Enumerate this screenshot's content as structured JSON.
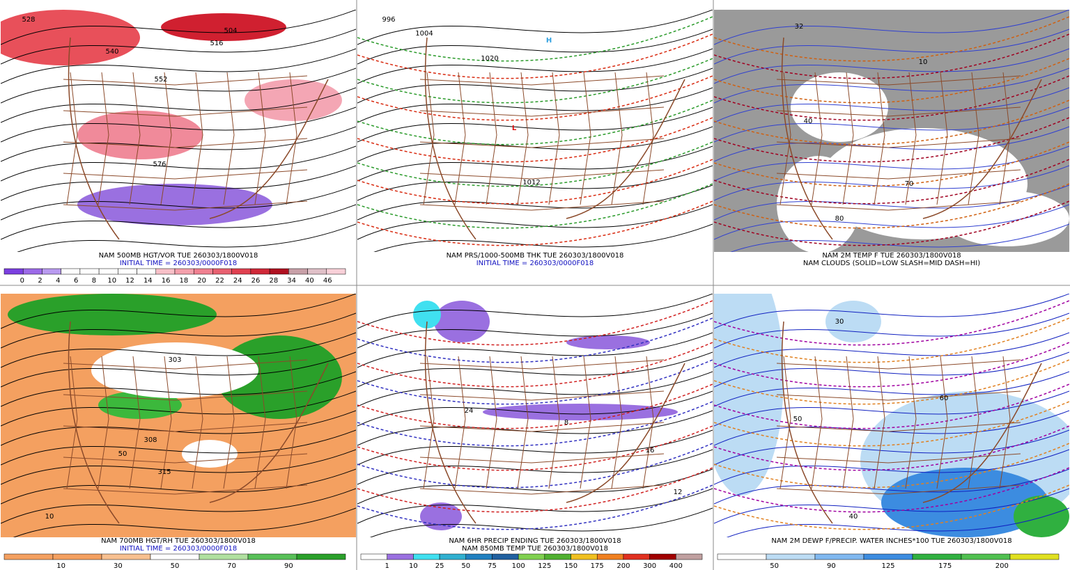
{
  "panels": [
    {
      "caption": [
        "NAM 500MB HGT/VOR TUE 260303/1800V018",
        "INITIAL TIME = 260303/0000F018"
      ],
      "colorbar": [
        "0",
        "2",
        "4",
        "6",
        "8",
        "10",
        "12",
        "14",
        "16",
        "18",
        "20",
        "22",
        "24",
        "26",
        "28",
        "34",
        "40",
        "46"
      ],
      "map_labels": [
        "528",
        "540",
        "552",
        "576",
        "504",
        "516"
      ]
    },
    {
      "caption": [
        "NAM PRS/1000-500MB THK TUE 260303/1800V018",
        "INITIAL TIME = 260303/0000F018"
      ],
      "map_labels": [
        "1020",
        "1012",
        "996",
        "1004",
        "H",
        "L"
      ]
    },
    {
      "caption": [
        "NAM 2M TEMP F TUE 260303/1800V018",
        "NAM CLOUDS (SOLID=LOW SLASH=MID DASH=HI)"
      ],
      "map_labels": [
        "32",
        "40",
        "70",
        "80",
        "10"
      ]
    },
    {
      "caption": [
        "NAM 700MB HGT/RH TUE 260303/1800V018",
        "INITIAL TIME = 260303/0000F018"
      ],
      "colorbar": [
        "10",
        "30",
        "50",
        "70",
        "90"
      ],
      "map_labels": [
        "303",
        "308",
        "315",
        "50",
        "10"
      ]
    },
    {
      "caption": [
        "NAM 6HR PRECIP ENDING TUE 260303/1800V018",
        "NAM 850MB TEMP TUE 260303/1800V018"
      ],
      "colorbar": [
        "1",
        "10",
        "25",
        "50",
        "75",
        "100",
        "125",
        "150",
        "175",
        "200",
        "300",
        "400"
      ],
      "map_labels": [
        "24",
        "16",
        "12",
        "8"
      ]
    },
    {
      "caption": [
        "NAM 2M DEWP F/PRECIP. WATER INCHES*100 TUE 260303/1800V018"
      ],
      "colorbar": [
        "50",
        "90",
        "125",
        "175",
        "200"
      ],
      "map_labels": [
        "50",
        "30",
        "40",
        "60"
      ]
    }
  ]
}
